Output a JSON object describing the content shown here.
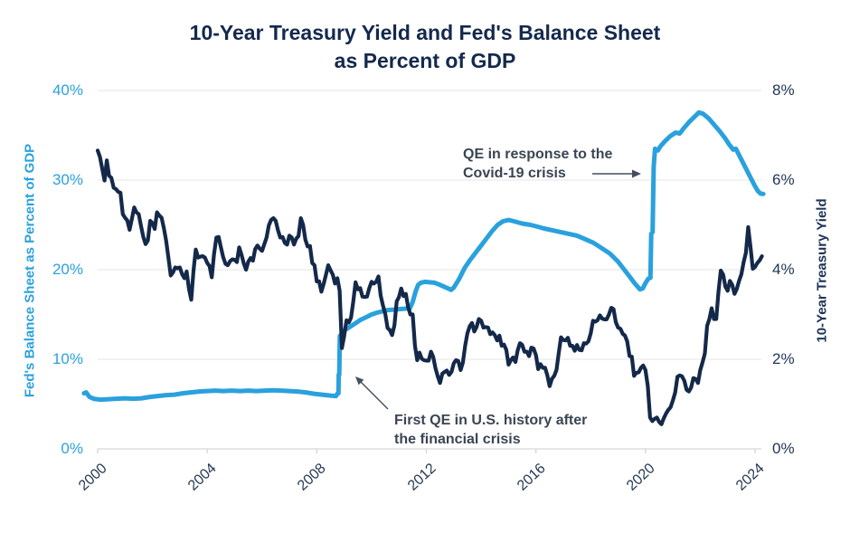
{
  "chart_data": {
    "type": "line",
    "title_lines": [
      "10-Year Treasury Yield and Fed's Balance Sheet",
      "as Percent of GDP"
    ],
    "grid": true,
    "background": "#ffffff",
    "gridline_color": "#e9e9e9",
    "axisline_color": "#d6d6d6",
    "x_axis": {
      "tick_years": [
        2000,
        2004,
        2008,
        2012,
        2016,
        2020,
        2024
      ],
      "tick_labels": [
        "2000",
        "2004",
        "2008",
        "2012",
        "2016",
        "2020",
        "2024"
      ],
      "range": [
        1999.5,
        2024.5
      ]
    },
    "left_axis": {
      "label": "Fed's Balance Sheet as Percent of GDP",
      "tick_values": [
        0,
        10,
        20,
        30,
        40
      ],
      "tick_labels": [
        "0%",
        "10%",
        "20%",
        "30%",
        "40%"
      ],
      "range": [
        0,
        40
      ],
      "color": "#2aa1dd"
    },
    "right_axis": {
      "label": "10-Year Treasury Yield",
      "tick_values": [
        0,
        2,
        4,
        6,
        8
      ],
      "tick_labels": [
        "0%",
        "2%",
        "4%",
        "6%",
        "8%"
      ],
      "range": [
        0,
        8
      ],
      "color": "#1d3354"
    },
    "series": [
      {
        "name": "Fed's Balance Sheet as Percent of GDP",
        "axis": "left",
        "color": "#2aa1dd",
        "stroke_width": 5,
        "points": [
          [
            1999.5,
            6.2
          ],
          [
            1999.58,
            6.3
          ],
          [
            1999.7,
            5.8
          ],
          [
            1999.85,
            5.6
          ],
          [
            2000.1,
            5.5
          ],
          [
            2000.4,
            5.55
          ],
          [
            2000.7,
            5.6
          ],
          [
            2001.0,
            5.65
          ],
          [
            2001.3,
            5.6
          ],
          [
            2001.6,
            5.65
          ],
          [
            2001.9,
            5.8
          ],
          [
            2002.2,
            5.9
          ],
          [
            2002.5,
            6.0
          ],
          [
            2002.8,
            6.05
          ],
          [
            2003.1,
            6.2
          ],
          [
            2003.4,
            6.3
          ],
          [
            2003.7,
            6.4
          ],
          [
            2004.0,
            6.45
          ],
          [
            2004.3,
            6.5
          ],
          [
            2004.6,
            6.45
          ],
          [
            2004.9,
            6.5
          ],
          [
            2005.2,
            6.45
          ],
          [
            2005.5,
            6.5
          ],
          [
            2005.8,
            6.45
          ],
          [
            2006.1,
            6.5
          ],
          [
            2006.4,
            6.55
          ],
          [
            2006.7,
            6.5
          ],
          [
            2007.0,
            6.45
          ],
          [
            2007.3,
            6.4
          ],
          [
            2007.6,
            6.3
          ],
          [
            2007.9,
            6.15
          ],
          [
            2008.2,
            6.05
          ],
          [
            2008.5,
            5.95
          ],
          [
            2008.7,
            5.9
          ],
          [
            2008.76,
            6.2
          ],
          [
            2008.79,
            6.2
          ],
          [
            2008.8,
            8.3
          ],
          [
            2008.82,
            8.3
          ],
          [
            2008.84,
            12.6
          ],
          [
            2008.92,
            12.9
          ],
          [
            2009.0,
            13.2
          ],
          [
            2009.2,
            13.6
          ],
          [
            2009.4,
            14.0
          ],
          [
            2009.6,
            14.4
          ],
          [
            2009.8,
            14.7
          ],
          [
            2010.0,
            15.0
          ],
          [
            2010.2,
            15.2
          ],
          [
            2010.4,
            15.35
          ],
          [
            2010.6,
            15.5
          ],
          [
            2010.8,
            15.55
          ],
          [
            2011.0,
            15.6
          ],
          [
            2011.2,
            15.65
          ],
          [
            2011.4,
            15.7
          ],
          [
            2011.5,
            16.4
          ],
          [
            2011.6,
            17.5
          ],
          [
            2011.7,
            18.3
          ],
          [
            2011.8,
            18.55
          ],
          [
            2011.95,
            18.65
          ],
          [
            2012.1,
            18.6
          ],
          [
            2012.3,
            18.55
          ],
          [
            2012.5,
            18.3
          ],
          [
            2012.65,
            18.1
          ],
          [
            2012.8,
            17.9
          ],
          [
            2012.9,
            17.75
          ],
          [
            2013.0,
            18.0
          ],
          [
            2013.2,
            19.0
          ],
          [
            2013.4,
            20.2
          ],
          [
            2013.6,
            21.1
          ],
          [
            2013.8,
            21.9
          ],
          [
            2014.0,
            22.7
          ],
          [
            2014.2,
            23.5
          ],
          [
            2014.4,
            24.3
          ],
          [
            2014.6,
            25.0
          ],
          [
            2014.8,
            25.4
          ],
          [
            2015.0,
            25.55
          ],
          [
            2015.2,
            25.4
          ],
          [
            2015.5,
            25.15
          ],
          [
            2015.8,
            25.0
          ],
          [
            2016.0,
            24.85
          ],
          [
            2016.3,
            24.6
          ],
          [
            2016.6,
            24.4
          ],
          [
            2016.9,
            24.2
          ],
          [
            2017.2,
            24.0
          ],
          [
            2017.5,
            23.8
          ],
          [
            2017.8,
            23.4
          ],
          [
            2018.1,
            23.0
          ],
          [
            2018.4,
            22.4
          ],
          [
            2018.7,
            21.8
          ],
          [
            2019.0,
            20.9
          ],
          [
            2019.2,
            20.1
          ],
          [
            2019.4,
            19.3
          ],
          [
            2019.6,
            18.5
          ],
          [
            2019.8,
            17.8
          ],
          [
            2019.9,
            17.9
          ],
          [
            2020.0,
            18.5
          ],
          [
            2020.1,
            19.0
          ],
          [
            2020.18,
            19.1
          ],
          [
            2020.21,
            24.0
          ],
          [
            2020.26,
            24.2
          ],
          [
            2020.3,
            31.5
          ],
          [
            2020.35,
            33.5
          ],
          [
            2020.45,
            33.3
          ],
          [
            2020.55,
            33.8
          ],
          [
            2020.7,
            34.3
          ],
          [
            2020.9,
            34.9
          ],
          [
            2021.1,
            35.3
          ],
          [
            2021.25,
            35.2
          ],
          [
            2021.4,
            35.8
          ],
          [
            2021.6,
            36.5
          ],
          [
            2021.8,
            37.1
          ],
          [
            2021.95,
            37.55
          ],
          [
            2022.1,
            37.4
          ],
          [
            2022.3,
            36.9
          ],
          [
            2022.5,
            36.2
          ],
          [
            2022.7,
            35.5
          ],
          [
            2022.9,
            34.7
          ],
          [
            2023.05,
            34.0
          ],
          [
            2023.2,
            33.4
          ],
          [
            2023.3,
            33.5
          ],
          [
            2023.45,
            32.6
          ],
          [
            2023.6,
            31.7
          ],
          [
            2023.75,
            30.8
          ],
          [
            2023.9,
            29.9
          ],
          [
            2024.0,
            29.3
          ],
          [
            2024.1,
            28.8
          ],
          [
            2024.2,
            28.5
          ],
          [
            2024.3,
            28.45
          ]
        ]
      },
      {
        "name": "10-Year Treasury Yield",
        "axis": "right",
        "color": "#14294a",
        "stroke_width": 4.2,
        "start_year": 2000.0,
        "step_years": 0.083333,
        "values": [
          6.66,
          6.52,
          6.26,
          5.99,
          6.44,
          6.1,
          6.05,
          5.83,
          5.8,
          5.74,
          5.72,
          5.24,
          5.16,
          5.1,
          4.89,
          5.14,
          5.39,
          5.28,
          5.24,
          4.97,
          4.73,
          4.57,
          4.65,
          5.09,
          5.04,
          4.91,
          5.28,
          5.21,
          5.16,
          4.93,
          4.65,
          4.26,
          3.87,
          3.94,
          4.05,
          4.03,
          4.05,
          3.9,
          3.81,
          3.96,
          3.57,
          3.33,
          3.98,
          4.45,
          4.27,
          4.29,
          4.3,
          4.27,
          4.15,
          4.08,
          3.83,
          4.35,
          4.72,
          4.73,
          4.5,
          4.28,
          4.13,
          4.1,
          4.19,
          4.23,
          4.22,
          4.17,
          4.5,
          4.34,
          4.14,
          4.0,
          4.18,
          4.26,
          4.2,
          4.46,
          4.54,
          4.47,
          4.42,
          4.57,
          4.72,
          4.99,
          5.11,
          5.15,
          5.09,
          4.88,
          4.72,
          4.73,
          4.6,
          4.56,
          4.76,
          4.72,
          4.56,
          4.69,
          4.75,
          5.15,
          5.0,
          4.67,
          4.52,
          4.53,
          4.15,
          4.1,
          3.74,
          3.74,
          3.51,
          3.68,
          3.88,
          4.1,
          3.99,
          3.89,
          3.69,
          3.81,
          3.53,
          2.25,
          2.52,
          2.87,
          2.82,
          2.93,
          3.29,
          3.72,
          3.56,
          3.59,
          3.4,
          3.39,
          3.4,
          3.59,
          3.73,
          3.69,
          3.73,
          3.85,
          3.42,
          3.2,
          3.01,
          2.7,
          2.65,
          2.54,
          2.76,
          3.29,
          3.39,
          3.58,
          3.41,
          3.46,
          3.17,
          3.0,
          3.0,
          2.3,
          1.98,
          2.15,
          2.01,
          1.98,
          1.97,
          1.97,
          2.17,
          2.05,
          1.8,
          1.62,
          1.47,
          1.68,
          1.72,
          1.75,
          1.65,
          1.72,
          1.91,
          1.98,
          1.96,
          1.76,
          1.93,
          2.3,
          2.58,
          2.74,
          2.81,
          2.62,
          2.72,
          2.9,
          2.86,
          2.71,
          2.72,
          2.71,
          2.56,
          2.6,
          2.54,
          2.42,
          2.53,
          2.3,
          2.33,
          2.21,
          1.88,
          1.98,
          2.04,
          1.94,
          2.2,
          2.36,
          2.32,
          2.17,
          2.17,
          2.07,
          2.26,
          2.24,
          2.09,
          1.78,
          1.89,
          1.81,
          1.81,
          1.64,
          1.4,
          1.56,
          1.63,
          1.76,
          2.14,
          2.49,
          2.43,
          2.42,
          2.48,
          2.3,
          2.3,
          2.19,
          2.32,
          2.21,
          2.2,
          2.36,
          2.35,
          2.4,
          2.58,
          2.86,
          2.84,
          2.87,
          2.98,
          2.91,
          2.89,
          2.89,
          3.0,
          3.15,
          3.12,
          2.83,
          2.71,
          2.68,
          2.57,
          2.53,
          2.4,
          2.07,
          2.06,
          1.63,
          1.7,
          1.71,
          1.81,
          1.86,
          1.76,
          1.4,
          0.7,
          0.62,
          0.67,
          0.7,
          0.6,
          0.55,
          0.68,
          0.79,
          0.87,
          0.93,
          1.08,
          1.26,
          1.61,
          1.64,
          1.62,
          1.52,
          1.32,
          1.28,
          1.37,
          1.58,
          1.56,
          1.47,
          1.76,
          1.93,
          2.13,
          2.75,
          2.9,
          3.14,
          2.9,
          2.9,
          3.52,
          3.98,
          3.89,
          3.62,
          3.53,
          3.75,
          3.66,
          3.46,
          3.57,
          3.75,
          3.9,
          4.17,
          4.38,
          4.95,
          4.5,
          4.02,
          4.06,
          4.15,
          4.21,
          4.3
        ]
      }
    ],
    "annotations": [
      {
        "id": "covid-qe",
        "text_lines": [
          "QE in response to the",
          "Covid-19 crisis"
        ]
      },
      {
        "id": "first-qe",
        "text_lines": [
          "First QE in U.S. history after",
          "the financial crisis"
        ]
      }
    ]
  }
}
